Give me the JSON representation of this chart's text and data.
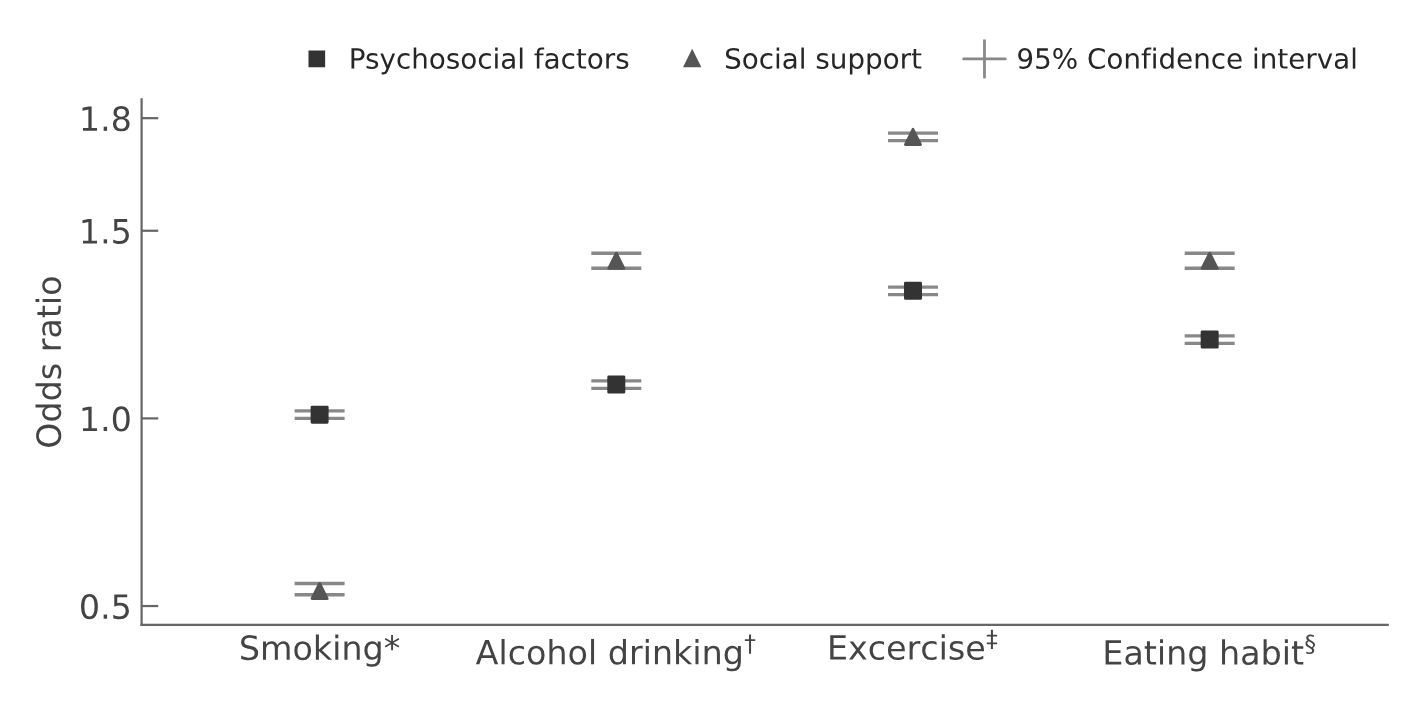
{
  "chart_data": {
    "type": "scatter",
    "ylabel": "Odds ratio",
    "categories": [
      "Smoking*",
      "Alcohol drinking$^{†}$",
      "Excercise$^{‡}$",
      "Eating habit$^{§}$"
    ],
    "series": [
      {
        "name": "Psychosocial factors",
        "color": "#333333",
        "marker": "square",
        "values": [
          1.01,
          1.09,
          1.34,
          1.21
        ],
        "errors": [
          [
            1.0,
            1.02
          ],
          [
            1.08,
            1.1
          ],
          [
            1.33,
            1.35
          ],
          [
            1.2,
            1.22
          ]
        ]
      },
      {
        "name": "Social support",
        "color": "#555555",
        "marker": "triangle",
        "values": [
          0.54,
          1.42,
          1.75,
          1.42
        ],
        "errors": [
          [
            0.53,
            0.56
          ],
          [
            1.4,
            1.44
          ],
          [
            1.74,
            1.76
          ],
          [
            1.4,
            1.44
          ]
        ]
      }
    ],
    "annotations": [
      "95% Confidence interval"
    ],
    "ylim": [
      0.45,
      1.85
    ],
    "yticks": [
      {
        "value": 0.5,
        "label": "0.5"
      },
      {
        "value": 1.0,
        "label": "1.0"
      },
      {
        "value": 1.5,
        "label": "1.5"
      },
      {
        "value": 1.8,
        "label": "1.8"
      }
    ],
    "grid": false,
    "legend": "top"
  }
}
